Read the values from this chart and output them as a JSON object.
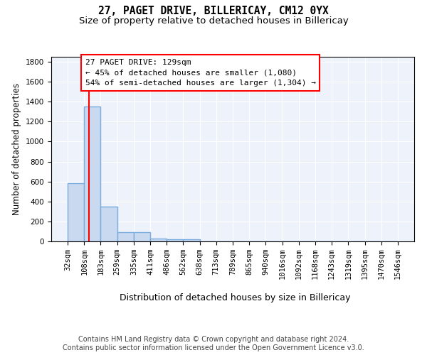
{
  "title": "27, PAGET DRIVE, BILLERICAY, CM12 0YX",
  "subtitle": "Size of property relative to detached houses in Billericay",
  "xlabel": "Distribution of detached houses by size in Billericay",
  "ylabel": "Number of detached properties",
  "bar_edges": [
    32,
    108,
    183,
    259,
    335,
    411,
    486,
    562,
    638,
    713,
    789,
    865,
    940,
    1016,
    1092,
    1168,
    1243,
    1319,
    1395,
    1470,
    1546
  ],
  "bar_heights": [
    580,
    1350,
    350,
    95,
    95,
    30,
    20,
    20,
    0,
    0,
    0,
    0,
    0,
    0,
    0,
    0,
    0,
    0,
    0,
    0
  ],
  "bar_color": "#c9d9f0",
  "bar_edge_color": "#7aadde",
  "bar_linewidth": 1.0,
  "vline_x": 129,
  "vline_color": "red",
  "vline_linewidth": 1.5,
  "annotation_text": "27 PAGET DRIVE: 129sqm\n← 45% of detached houses are smaller (1,080)\n54% of semi-detached houses are larger (1,304) →",
  "annotation_fontsize": 8.0,
  "bg_color": "#eef2fb",
  "ylim": [
    0,
    1850
  ],
  "yticks": [
    0,
    200,
    400,
    600,
    800,
    1000,
    1200,
    1400,
    1600,
    1800
  ],
  "title_fontsize": 10.5,
  "subtitle_fontsize": 9.5,
  "xlabel_fontsize": 9,
  "ylabel_fontsize": 8.5,
  "tick_fontsize": 7.5,
  "footer_text": "Contains HM Land Registry data © Crown copyright and database right 2024.\nContains public sector information licensed under the Open Government Licence v3.0.",
  "footer_fontsize": 7.0
}
